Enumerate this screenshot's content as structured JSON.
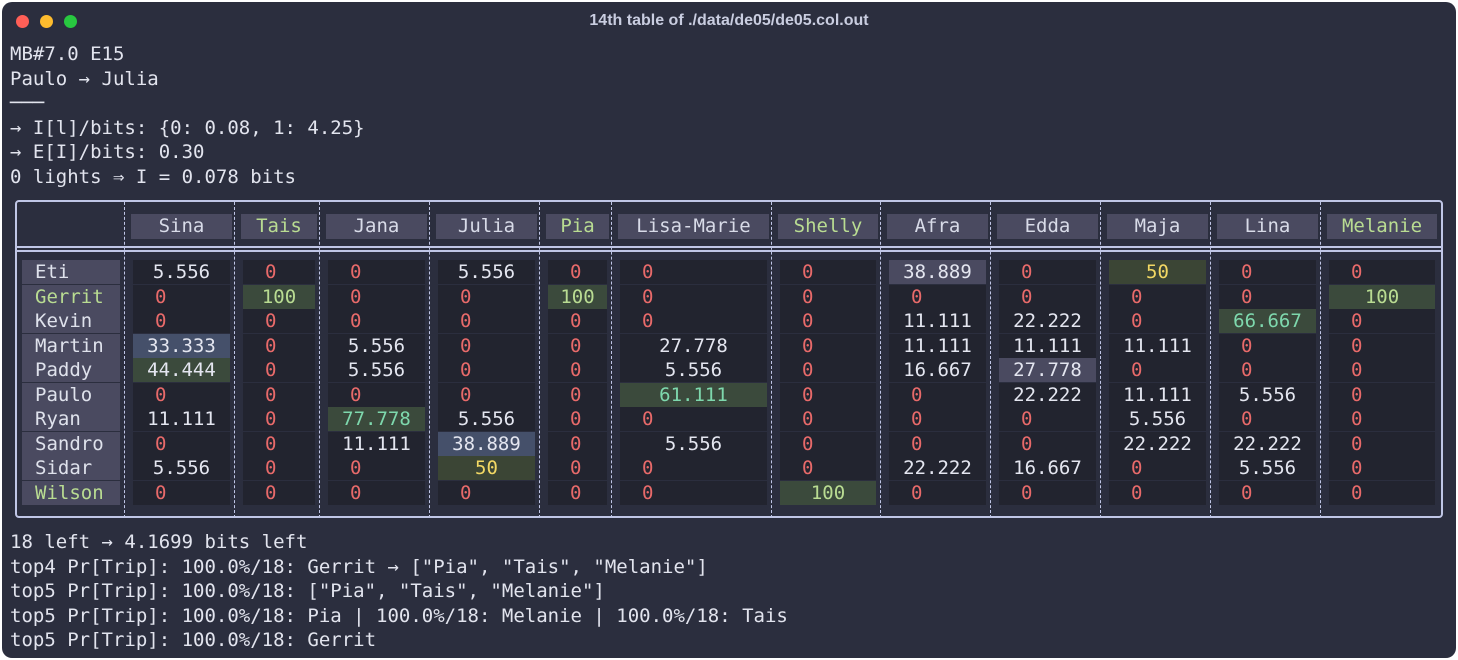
{
  "window": {
    "title": "14th table of ./data/de05/de05.col.out",
    "close_color": "#ff5f57",
    "minimize_color": "#febc2e",
    "maximize_color": "#28c840"
  },
  "header_lines": [
    "MB#7.0 E15",
    "Paulo → Julia",
    "───",
    "→ I[l]/bits: {0: 0.08, 1: 4.25}",
    "→ E[I]/bits: 0.30",
    "0 lights ⇒ I = 0.078 bits"
  ],
  "table": {
    "columns": [
      {
        "label": "Sina",
        "highlight": false
      },
      {
        "label": "Tais",
        "highlight": true
      },
      {
        "label": "Jana",
        "highlight": false
      },
      {
        "label": "Julia",
        "highlight": false
      },
      {
        "label": "Pia",
        "highlight": true
      },
      {
        "label": "Lisa-Marie",
        "highlight": false
      },
      {
        "label": "Shelly",
        "highlight": true
      },
      {
        "label": "Afra",
        "highlight": false
      },
      {
        "label": "Edda",
        "highlight": false
      },
      {
        "label": "Maja",
        "highlight": false
      },
      {
        "label": "Lina",
        "highlight": false
      },
      {
        "label": "Melanie",
        "highlight": true
      }
    ],
    "rows": [
      {
        "name": "Eti",
        "highlight": false,
        "values": [
          "5.556",
          "0",
          "0",
          "5.556",
          "0",
          "0",
          "0",
          "38.889",
          "0",
          "50",
          "0",
          "0"
        ]
      },
      {
        "name": "Gerrit",
        "highlight": true,
        "values": [
          "0",
          "100",
          "0",
          "0",
          "100",
          "0",
          "0",
          "0",
          "0",
          "0",
          "0",
          "100"
        ]
      },
      {
        "name": "Kevin",
        "highlight": false,
        "values": [
          "0",
          "0",
          "0",
          "0",
          "0",
          "0",
          "0",
          "11.111",
          "22.222",
          "0",
          "66.667",
          "0"
        ]
      },
      {
        "name": "Martin",
        "highlight": false,
        "values": [
          "33.333",
          "0",
          "5.556",
          "0",
          "0",
          "27.778",
          "0",
          "11.111",
          "11.111",
          "11.111",
          "0",
          "0"
        ]
      },
      {
        "name": "Paddy",
        "highlight": false,
        "values": [
          "44.444",
          "0",
          "5.556",
          "0",
          "0",
          "5.556",
          "0",
          "16.667",
          "27.778",
          "0",
          "0",
          "0"
        ]
      },
      {
        "name": "Paulo",
        "highlight": false,
        "values": [
          "0",
          "0",
          "0",
          "0",
          "0",
          "61.111",
          "0",
          "0",
          "22.222",
          "11.111",
          "5.556",
          "0"
        ]
      },
      {
        "name": "Ryan",
        "highlight": false,
        "values": [
          "11.111",
          "0",
          "77.778",
          "5.556",
          "0",
          "0",
          "0",
          "0",
          "0",
          "5.556",
          "0",
          "0"
        ]
      },
      {
        "name": "Sandro",
        "highlight": false,
        "values": [
          "0",
          "0",
          "11.111",
          "38.889",
          "0",
          "5.556",
          "0",
          "0",
          "0",
          "22.222",
          "22.222",
          "0"
        ]
      },
      {
        "name": "Sidar",
        "highlight": false,
        "values": [
          "5.556",
          "0",
          "0",
          "50",
          "0",
          "0",
          "0",
          "22.222",
          "16.667",
          "0",
          "5.556",
          "0"
        ]
      },
      {
        "name": "Wilson",
        "highlight": true,
        "values": [
          "0",
          "0",
          "0",
          "0",
          "0",
          "0",
          "100",
          "0",
          "0",
          "0",
          "0",
          "0"
        ]
      }
    ],
    "colors": {
      "zero": "#e86a6a",
      "value": "#e4e6f0",
      "row_bg_dark": "#22242f",
      "header_bg": "#4a4a60",
      "green_label": "#b9dc92"
    }
  },
  "footer_lines": [
    "18 left → 4.1699 bits left",
    "top4 Pr[Trip]: 100.0%/18: Gerrit → [\"Pia\", \"Tais\", \"Melanie\"]",
    "top5 Pr[Trip]: 100.0%/18: [\"Pia\", \"Tais\", \"Melanie\"]",
    "top5 Pr[Trip]: 100.0%/18: Pia | 100.0%/18: Melanie | 100.0%/18: Tais",
    "top5 Pr[Trip]: 100.0%/18: Gerrit"
  ]
}
